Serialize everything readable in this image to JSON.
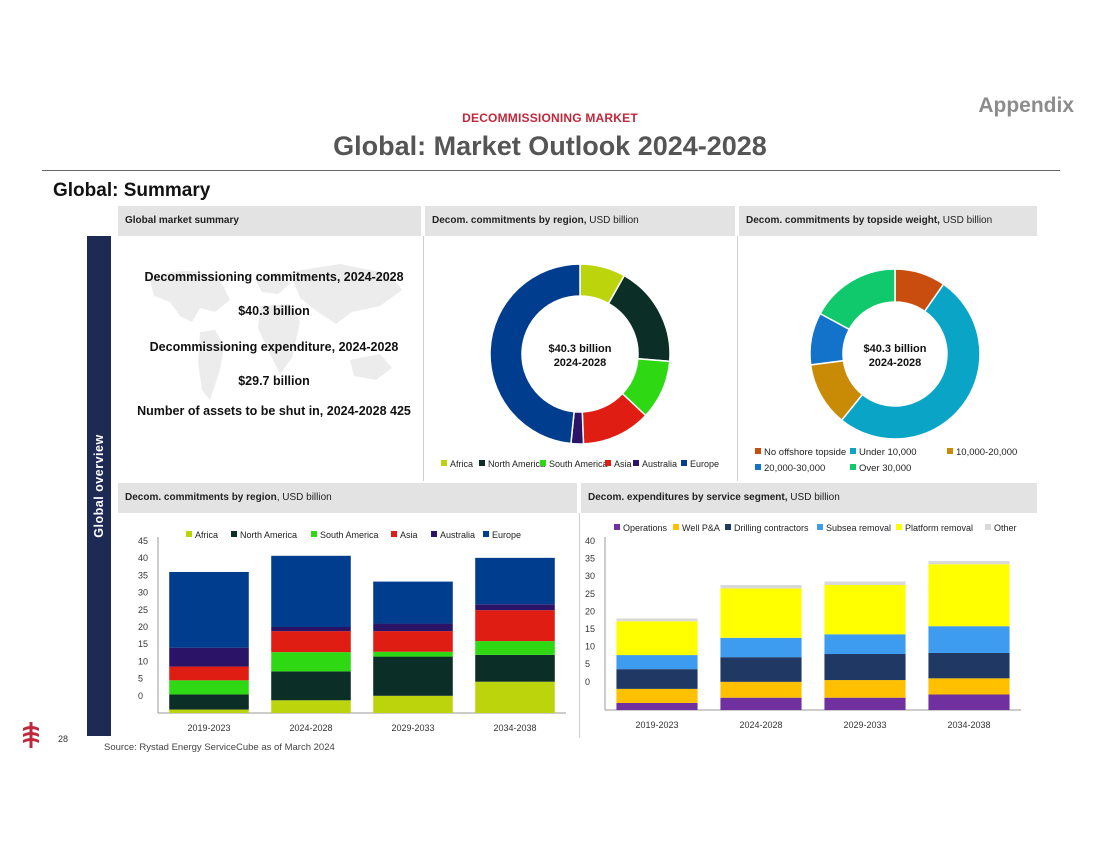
{
  "header": {
    "kicker": "DECOMMISSIONING MARKET",
    "title": "Global: Market Outlook 2024-2028",
    "appendix": "Appendix"
  },
  "section_title": "Global: Summary",
  "sidebar_label": "Global overview",
  "summary_panel": {
    "header": "Global market summary",
    "lines": [
      "Decommissioning commitments, 2024-2028",
      "$40.3 billion",
      "Decommissioning expenditure, 2024-2028",
      "$29.7 billion",
      "Number of assets to be shut in, 2024-2028 425"
    ]
  },
  "panels": {
    "region_donut": {
      "header_bold": "Decom. commitments by region,",
      "header_unit": " USD billion"
    },
    "weight_donut": {
      "header_bold": "Decom. commitments by topside weight,",
      "header_unit": " USD billion"
    },
    "region_bars": {
      "header_bold": "Decom. commitments by region",
      "header_unit": ", USD billion"
    },
    "segment_bars": {
      "header_bold": "Decom. expenditures by service segment,",
      "header_unit": " USD billion"
    }
  },
  "footer": {
    "page_number": "28",
    "source": "Source:  Rystad Energy ServiceCube as of March 2024"
  },
  "chart_data": [
    {
      "type": "pie",
      "id": "region_donut",
      "center_label": [
        "$40.3 billion",
        "2024-2028"
      ],
      "categories": [
        "Africa",
        "North America",
        "South America",
        "Asia",
        "Australia",
        "Europe"
      ],
      "values": [
        3.3,
        7.3,
        4.3,
        5.0,
        0.9,
        19.5
      ],
      "colors": [
        "#bcd40b",
        "#0b2e26",
        "#2ed914",
        "#e01d12",
        "#2b1468",
        "#003d8f"
      ],
      "legend_position": "bottom"
    },
    {
      "type": "pie",
      "id": "weight_donut",
      "center_label": [
        "$40.3 billion",
        "2024-2028"
      ],
      "categories": [
        "No offshore topside",
        "Under 10,000",
        "10,000-20,000",
        "20,000-30,000",
        "Over 30,000"
      ],
      "values": [
        3.9,
        20.6,
        4.9,
        4.0,
        6.9
      ],
      "colors": [
        "#c94d0f",
        "#0aa4c7",
        "#c98a06",
        "#1372c9",
        "#10c96d"
      ],
      "legend_position": "bottom"
    },
    {
      "type": "bar",
      "id": "region_bars",
      "stacked": true,
      "categories": [
        "2019-2023",
        "2024-2028",
        "2029-2033",
        "2034-2038"
      ],
      "ylim": [
        -5,
        45
      ],
      "yticks": [
        0,
        5,
        10,
        15,
        20,
        25,
        30,
        35,
        40,
        45
      ],
      "legend_position": "top",
      "series": [
        {
          "name": "Africa",
          "color": "#bcd40b",
          "values": [
            -4.0,
            -1.3,
            0.0,
            4.1
          ]
        },
        {
          "name": "North America",
          "color": "#0b2e26",
          "values": [
            4.4,
            8.4,
            11.4,
            7.8
          ]
        },
        {
          "name": "South America",
          "color": "#2ed914",
          "values": [
            4.1,
            5.6,
            1.4,
            4.0
          ]
        },
        {
          "name": "Asia",
          "color": "#e01d12",
          "values": [
            4.0,
            6.1,
            6.0,
            9.0
          ]
        },
        {
          "name": "Australia",
          "color": "#2b1468",
          "values": [
            5.5,
            1.2,
            2.2,
            1.7
          ]
        },
        {
          "name": "Europe",
          "color": "#003d8f",
          "values": [
            22.0,
            20.7,
            12.2,
            13.5
          ]
        }
      ]
    },
    {
      "type": "bar",
      "id": "segment_bars",
      "stacked": true,
      "categories": [
        "2019-2023",
        "2024-2028",
        "2029-2033",
        "2034-2038"
      ],
      "ylim": [
        -8,
        40
      ],
      "yticks": [
        0,
        5,
        10,
        15,
        20,
        25,
        30,
        35,
        40
      ],
      "legend_position": "top",
      "series": [
        {
          "name": "Operations",
          "color": "#7030a0",
          "values": [
            -6.0,
            -4.5,
            -4.5,
            -3.6
          ]
        },
        {
          "name": "Well P&A",
          "color": "#ffc000",
          "values": [
            4.0,
            4.5,
            5.0,
            4.6
          ]
        },
        {
          "name": "Drilling contractors",
          "color": "#1f3864",
          "values": [
            5.6,
            7.0,
            7.4,
            7.2
          ]
        },
        {
          "name": "Subsea removal",
          "color": "#3d9cf0",
          "values": [
            4.0,
            5.5,
            5.6,
            7.6
          ]
        },
        {
          "name": "Platform removal",
          "color": "#ffff00",
          "values": [
            9.6,
            14.0,
            14.0,
            17.6
          ]
        },
        {
          "name": "Other",
          "color": "#d9d9d9",
          "values": [
            0.8,
            1.0,
            1.0,
            0.9
          ]
        }
      ]
    }
  ]
}
